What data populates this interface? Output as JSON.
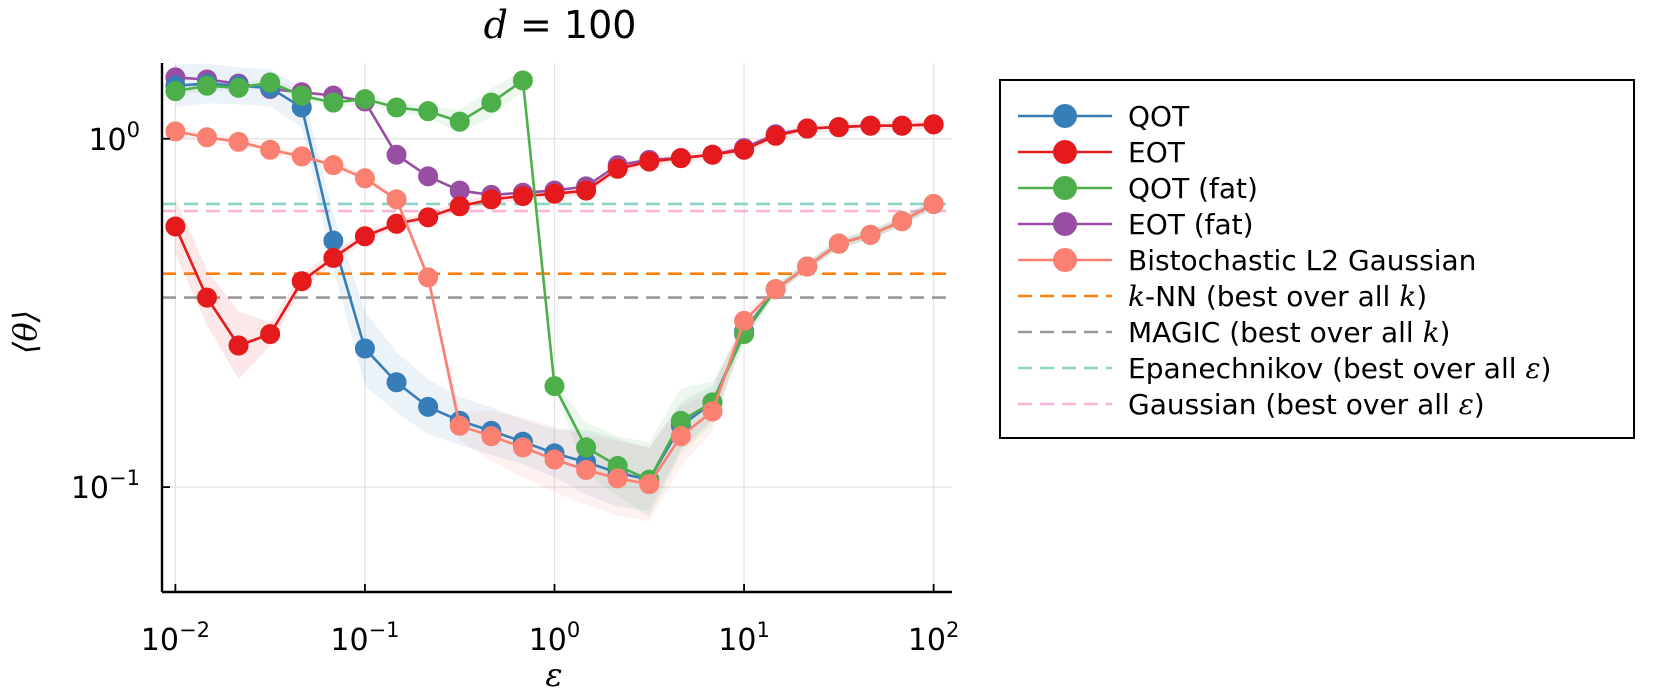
{
  "chart_data": {
    "type": "line",
    "title_var": "d",
    "title_rest": " = 100",
    "xlabel": "ε",
    "ylabel": "⟨θ⟩",
    "x_scale": "log",
    "y_scale": "log",
    "xlim": [
      0.0085,
      125
    ],
    "ylim": [
      0.05,
      1.65
    ],
    "x_ticks": [
      0.01,
      0.1,
      1,
      10,
      100
    ],
    "x_tick_exponents": [
      "−2",
      "−1",
      "0",
      "1",
      "2"
    ],
    "y_ticks": [
      0.1,
      1
    ],
    "y_tick_exponents": [
      "−1",
      "0"
    ],
    "tick_base": "10",
    "grid": true,
    "legend_position": "outside-right",
    "x": [
      0.01,
      0.01468,
      0.02154,
      0.03162,
      0.04642,
      0.06813,
      0.1,
      0.1468,
      0.2154,
      0.3162,
      0.4642,
      0.6813,
      1.0,
      1.468,
      2.154,
      3.162,
      4.642,
      6.813,
      10.0,
      14.68,
      21.54,
      31.62,
      46.42,
      68.13,
      100.0
    ],
    "series": [
      {
        "name": "EOT (fat)",
        "kind": "marker",
        "color": "#984ea3",
        "values": [
          1.5,
          1.48,
          1.44,
          1.39,
          1.36,
          1.33,
          1.28,
          0.9,
          0.78,
          0.71,
          0.69,
          0.7,
          0.71,
          0.73,
          0.84,
          0.87,
          0.88,
          0.9,
          0.94,
          1.03,
          1.07,
          1.08,
          1.09,
          1.09,
          1.1
        ]
      },
      {
        "name": "QOT",
        "kind": "marker",
        "color": "#377eb8",
        "band": [
          0.15,
          0.14,
          0.13,
          0.13,
          0.14,
          0.2,
          0.28,
          0.22,
          0.2,
          0.17,
          0.17,
          0.16,
          0.17,
          0.24,
          0.25,
          0.23,
          0.17,
          0.12,
          0.06,
          0.03,
          0.03,
          0.03,
          0.03,
          0.03,
          0.03
        ],
        "values": [
          1.42,
          1.44,
          1.42,
          1.4,
          1.23,
          0.51,
          0.25,
          0.2,
          0.17,
          0.155,
          0.145,
          0.135,
          0.125,
          0.118,
          0.11,
          0.105,
          0.15,
          0.175,
          0.28,
          0.37,
          0.43,
          0.5,
          0.53,
          0.58,
          0.65
        ]
      },
      {
        "name": "EOT",
        "kind": "marker",
        "color": "#e41a1c",
        "band": [
          0.2,
          0.2,
          0.25,
          0.08,
          0.05,
          0.04,
          0.03,
          0.03,
          0.03,
          0.03,
          0.03,
          0.03,
          0.03,
          0.03,
          0.03,
          0.03,
          0.03,
          0.03,
          0.03,
          0.03,
          0.03,
          0.03,
          0.03,
          0.03,
          0.03
        ],
        "values": [
          0.56,
          0.35,
          0.255,
          0.275,
          0.39,
          0.455,
          0.525,
          0.57,
          0.595,
          0.64,
          0.67,
          0.685,
          0.695,
          0.71,
          0.82,
          0.86,
          0.88,
          0.9,
          0.93,
          1.02,
          1.07,
          1.08,
          1.09,
          1.09,
          1.1
        ]
      },
      {
        "name": "QOT (fat)",
        "kind": "marker",
        "color": "#4daf4a",
        "band": [
          0.03,
          0.03,
          0.03,
          0.03,
          0.03,
          0.03,
          0.03,
          0.03,
          0.04,
          0.08,
          0.1,
          0.07,
          0.03,
          0.18,
          0.22,
          0.28,
          0.24,
          0.15,
          0.06,
          0.03,
          0.03,
          0.03,
          0.03,
          0.03,
          0.03
        ],
        "values": [
          1.37,
          1.42,
          1.4,
          1.45,
          1.33,
          1.27,
          1.3,
          1.23,
          1.2,
          1.12,
          1.27,
          1.47,
          0.195,
          0.13,
          0.115,
          0.105,
          0.155,
          0.175,
          0.275,
          0.37,
          0.43,
          0.5,
          0.53,
          0.58,
          0.65
        ]
      },
      {
        "name": "Bistochastic L2 Gaussian",
        "kind": "marker",
        "color": "#fa8072",
        "band": [
          0.03,
          0.03,
          0.03,
          0.03,
          0.03,
          0.03,
          0.03,
          0.03,
          0.03,
          0.1,
          0.18,
          0.22,
          0.24,
          0.26,
          0.28,
          0.28,
          0.22,
          0.14,
          0.05,
          0.03,
          0.03,
          0.03,
          0.03,
          0.03,
          0.03
        ],
        "values": [
          1.05,
          1.01,
          0.98,
          0.93,
          0.89,
          0.84,
          0.77,
          0.67,
          0.4,
          0.15,
          0.14,
          0.13,
          0.12,
          0.112,
          0.106,
          0.102,
          0.14,
          0.165,
          0.3,
          0.37,
          0.43,
          0.5,
          0.53,
          0.58,
          0.65
        ]
      },
      {
        "name": "k-NN (best over all k)",
        "name_parts": [
          "k",
          "-NN (best over all ",
          "k",
          ")"
        ],
        "kind": "dashed",
        "color": "#ff7f0e",
        "value": 0.41
      },
      {
        "name": "MAGIC (best over all k)",
        "name_parts": [
          "",
          "MAGIC (best over all ",
          "k",
          ")"
        ],
        "kind": "dashed",
        "color": "#999999",
        "value": 0.35
      },
      {
        "name": "Epanechnikov (best over all ε)",
        "name_parts": [
          "",
          "Epanechnikov (best over all ",
          "ε",
          ")"
        ],
        "kind": "dashed",
        "color": "#8ed3c7",
        "value": 0.65
      },
      {
        "name": "Gaussian (best over all ε)",
        "name_parts": [
          "",
          "Gaussian (best over all ",
          "ε",
          ")"
        ],
        "kind": "dashed",
        "color": "#fbb4d9",
        "value": 0.62
      }
    ],
    "legend_order": [
      "QOT",
      "EOT",
      "QOT (fat)",
      "EOT (fat)",
      "Bistochastic L2 Gaussian",
      "k-NN (best over all k)",
      "MAGIC (best over all k)",
      "Epanechnikov (best over all ε)",
      "Gaussian (best over all ε)"
    ]
  }
}
